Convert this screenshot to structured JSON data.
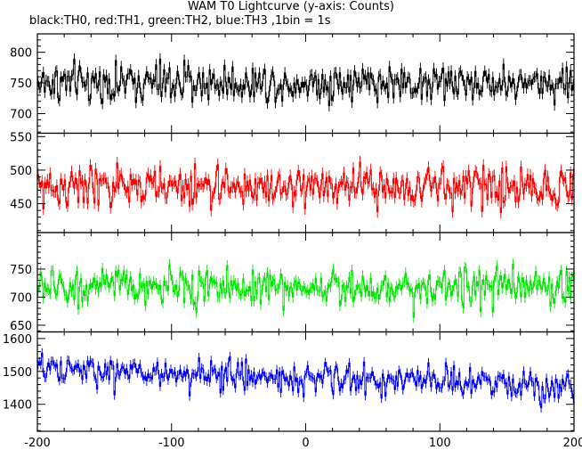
{
  "chart_data": {
    "type": "line",
    "title": "WAM T0 Lightcurve (y-axis: Counts)",
    "subtitle": "black:TH0, red:TH1, green:TH2, blue:TH3 ,1bin = 1s",
    "x": {
      "min": -200,
      "max": 200,
      "step": 1,
      "ticks": [
        -200,
        -100,
        0,
        100,
        200
      ]
    },
    "grid": false,
    "panels": [
      {
        "series": "TH0",
        "color": "#000000",
        "ylim": [
          668,
          830
        ],
        "yticks": [
          700,
          750,
          800
        ],
        "mean": 750,
        "noise": 26,
        "trend": 0
      },
      {
        "series": "TH1",
        "color": "#ff0000",
        "ylim": [
          407,
          555
        ],
        "yticks": [
          450,
          500,
          550
        ],
        "mean": 475,
        "noise": 25,
        "trend": 0
      },
      {
        "series": "TH2",
        "color": "#00e600",
        "ylim": [
          638,
          815
        ],
        "yticks": [
          650,
          700,
          750
        ],
        "mean": 718,
        "noise": 27,
        "trend": 0
      },
      {
        "series": "TH3",
        "color": "#0000ff",
        "ylim": [
          1318,
          1620
        ],
        "yticks": [
          1400,
          1500,
          1600
        ],
        "mean": 1480,
        "noise": 40,
        "trend": -50
      }
    ]
  }
}
